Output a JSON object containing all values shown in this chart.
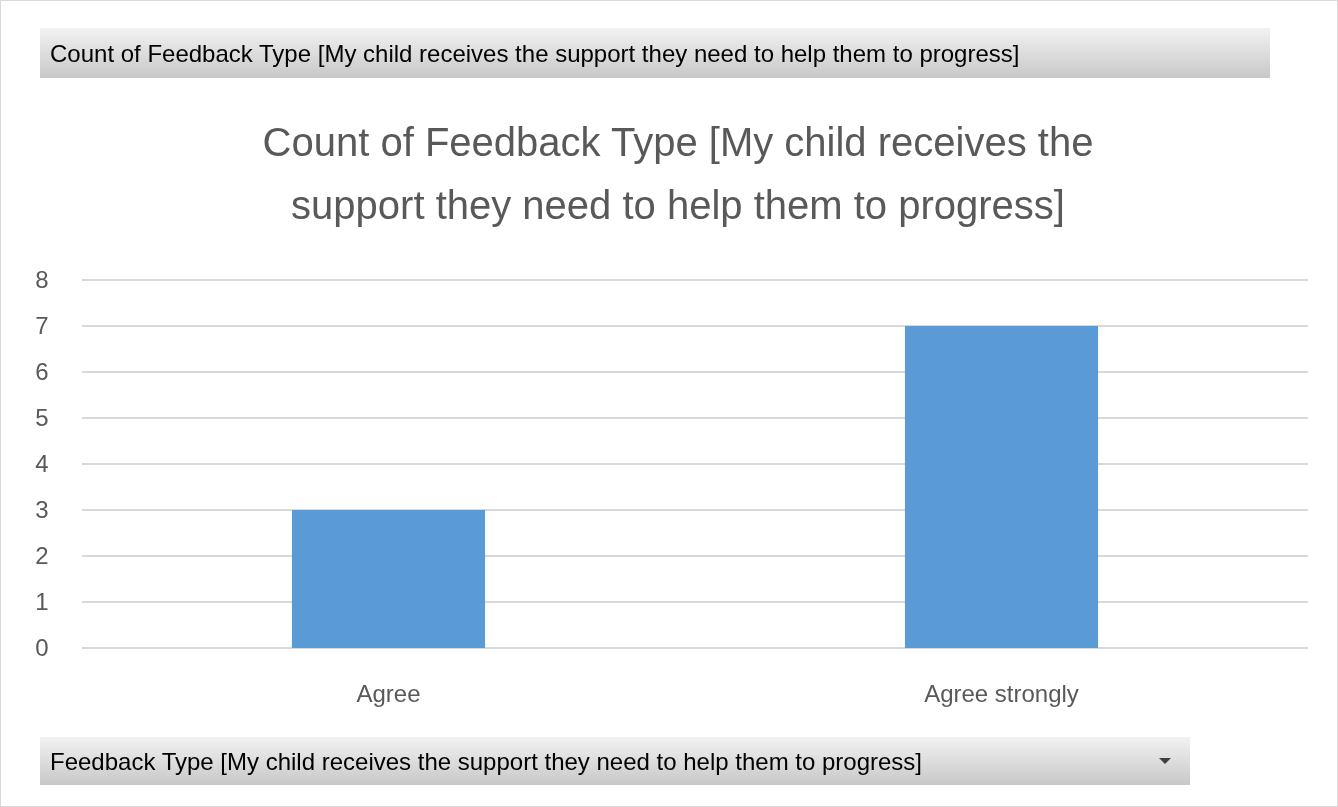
{
  "chart_data": {
    "type": "bar",
    "title": "Count of Feedback Type [My child receives the support they need to help them to progress]",
    "annotations": [
      "Count of Feedback Type [My child receives the support they need to help them to progress]"
    ],
    "xlabel": "Feedback Type [My child receives the support they need to help them to progress]",
    "categories": [
      "Agree",
      "Agree strongly"
    ],
    "values": [
      3,
      7
    ],
    "color": "#5b9bd5",
    "ylim": [
      0,
      8
    ],
    "yticks": [
      0,
      1,
      2,
      3,
      4,
      5,
      6,
      7,
      8
    ],
    "grid": "y"
  }
}
